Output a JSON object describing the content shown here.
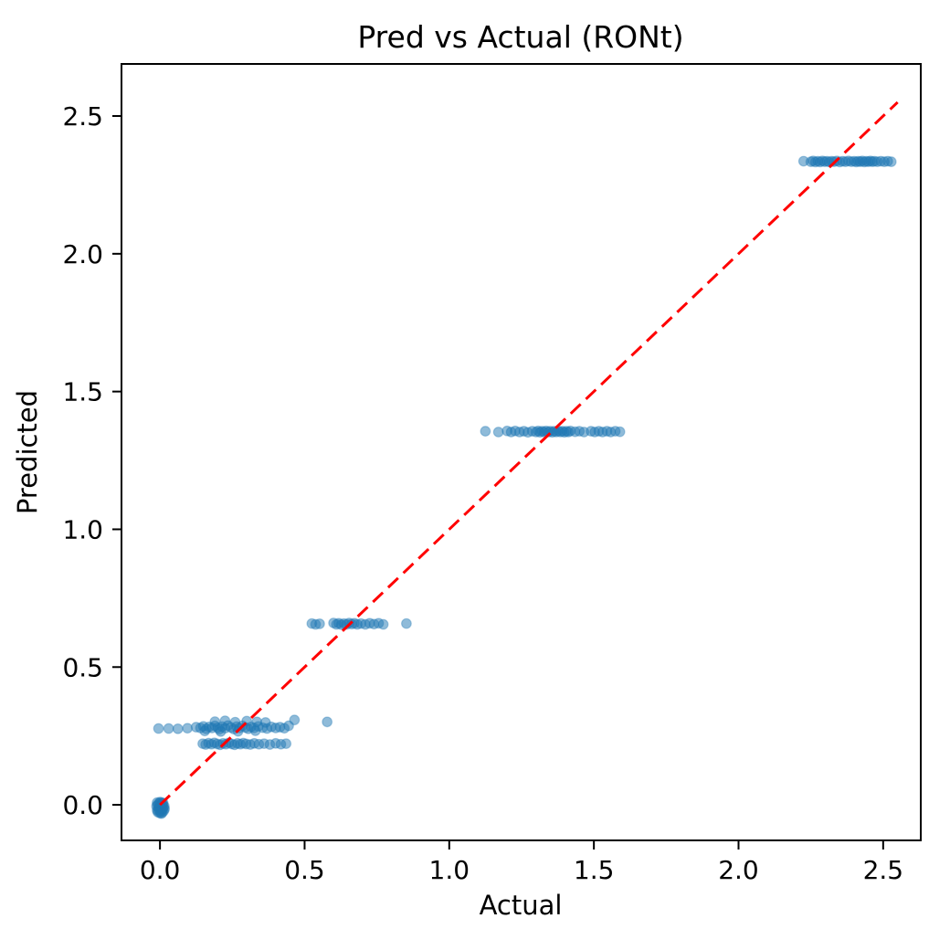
{
  "chart_data": {
    "type": "scatter",
    "title": "Pred vs Actual (RONt)",
    "xlabel": "Actual",
    "ylabel": "Predicted",
    "xlim": [
      -0.133,
      2.63
    ],
    "ylim": [
      -0.129,
      2.689
    ],
    "grid": false,
    "legend": "none",
    "background_color": "#ffffff",
    "frame_color": "#000000",
    "marker_color": "#1f77b4",
    "marker_alpha": 0.5,
    "xticks": [
      "0.0",
      "0.5",
      "1.0",
      "1.5",
      "2.0",
      "2.5"
    ],
    "xtick_values": [
      0.0,
      0.5,
      1.0,
      1.5,
      2.0,
      2.5
    ],
    "yticks": [
      "0.0",
      "0.5",
      "1.0",
      "1.5",
      "2.0",
      "2.5"
    ],
    "ytick_values": [
      0.0,
      0.5,
      1.0,
      1.5,
      2.0,
      2.5
    ],
    "identity_line": {
      "color": "#ff0000",
      "style": "dashed",
      "from": [
        0.0,
        0.0
      ],
      "to": [
        2.55,
        2.55
      ]
    },
    "points": [
      [
        0,
        0
      ],
      [
        0.005,
        -0.005
      ],
      [
        -0.005,
        -0.01
      ],
      [
        0.01,
        -0.015
      ],
      [
        0,
        -0.02
      ],
      [
        0.008,
        0.005
      ],
      [
        -0.008,
        0
      ],
      [
        0.003,
        -0.025
      ],
      [
        0.012,
        -0.01
      ],
      [
        -0.01,
        -0.02
      ],
      [
        0,
        -0.005
      ],
      [
        0.006,
        -0.02
      ],
      [
        -0.004,
        0.005
      ],
      [
        0.01,
        0
      ],
      [
        0.002,
        -0.012
      ],
      [
        -0.006,
        -0.018
      ],
      [
        0.015,
        -0.005
      ],
      [
        0,
        -0.03
      ],
      [
        0.008,
        -0.028
      ],
      [
        -0.01,
        0.008
      ],
      [
        0.004,
        0.008
      ],
      [
        0.013,
        -0.022
      ],
      [
        -0.002,
        -0.008
      ],
      [
        0.007,
        -0.012
      ],
      [
        0,
        0.01
      ],
      [
        -0.012,
        -0.005
      ],
      [
        0.016,
        -0.015
      ],
      [
        0.005,
        -0.032
      ],
      [
        -0.007,
        -0.027
      ],
      [
        0.011,
        0.007
      ],
      [
        -0.005,
        0.277
      ],
      [
        0.03,
        0.277
      ],
      [
        0.062,
        0.276
      ],
      [
        0.095,
        0.278
      ],
      [
        0.125,
        0.282
      ],
      [
        0.14,
        0.279
      ],
      [
        0.15,
        0.285
      ],
      [
        0.16,
        0.276
      ],
      [
        0.17,
        0.283
      ],
      [
        0.18,
        0.279
      ],
      [
        0.19,
        0.287
      ],
      [
        0.2,
        0.28
      ],
      [
        0.205,
        0.274
      ],
      [
        0.215,
        0.284
      ],
      [
        0.225,
        0.278
      ],
      [
        0.235,
        0.288
      ],
      [
        0.245,
        0.281
      ],
      [
        0.255,
        0.275
      ],
      [
        0.265,
        0.284
      ],
      [
        0.275,
        0.279
      ],
      [
        0.285,
        0.287
      ],
      [
        0.295,
        0.281
      ],
      [
        0.305,
        0.276
      ],
      [
        0.315,
        0.283
      ],
      [
        0.325,
        0.279
      ],
      [
        0.34,
        0.285
      ],
      [
        0.355,
        0.28
      ],
      [
        0.37,
        0.277
      ],
      [
        0.385,
        0.283
      ],
      [
        0.4,
        0.279
      ],
      [
        0.415,
        0.282
      ],
      [
        0.43,
        0.278
      ],
      [
        0.19,
        0.302
      ],
      [
        0.225,
        0.305
      ],
      [
        0.26,
        0.3
      ],
      [
        0.3,
        0.304
      ],
      [
        0.335,
        0.301
      ],
      [
        0.365,
        0.299
      ],
      [
        0.155,
        0.268
      ],
      [
        0.21,
        0.266
      ],
      [
        0.27,
        0.267
      ],
      [
        0.33,
        0.269
      ],
      [
        0.445,
        0.287
      ],
      [
        0.465,
        0.308
      ],
      [
        0.578,
        0.301
      ],
      [
        0.148,
        0.222
      ],
      [
        0.158,
        0.219
      ],
      [
        0.168,
        0.224
      ],
      [
        0.178,
        0.22
      ],
      [
        0.188,
        0.225
      ],
      [
        0.198,
        0.221
      ],
      [
        0.208,
        0.218
      ],
      [
        0.218,
        0.223
      ],
      [
        0.228,
        0.22
      ],
      [
        0.238,
        0.225
      ],
      [
        0.248,
        0.221
      ],
      [
        0.258,
        0.218
      ],
      [
        0.268,
        0.223
      ],
      [
        0.278,
        0.22
      ],
      [
        0.288,
        0.224
      ],
      [
        0.298,
        0.221
      ],
      [
        0.312,
        0.219
      ],
      [
        0.326,
        0.223
      ],
      [
        0.342,
        0.22
      ],
      [
        0.36,
        0.222
      ],
      [
        0.38,
        0.219
      ],
      [
        0.4,
        0.223
      ],
      [
        0.418,
        0.22
      ],
      [
        0.436,
        0.222
      ],
      [
        0.525,
        0.658
      ],
      [
        0.538,
        0.655
      ],
      [
        0.552,
        0.657
      ],
      [
        0.6,
        0.66
      ],
      [
        0.61,
        0.655
      ],
      [
        0.618,
        0.659
      ],
      [
        0.627,
        0.654
      ],
      [
        0.636,
        0.658
      ],
      [
        0.645,
        0.655
      ],
      [
        0.654,
        0.66
      ],
      [
        0.663,
        0.656
      ],
      [
        0.672,
        0.659
      ],
      [
        0.682,
        0.655
      ],
      [
        0.695,
        0.658
      ],
      [
        0.71,
        0.655
      ],
      [
        0.725,
        0.659
      ],
      [
        0.74,
        0.656
      ],
      [
        0.756,
        0.659
      ],
      [
        0.772,
        0.655
      ],
      [
        0.852,
        0.658
      ],
      [
        1.125,
        1.356
      ],
      [
        1.17,
        1.353
      ],
      [
        1.2,
        1.357
      ],
      [
        1.214,
        1.353
      ],
      [
        1.228,
        1.357
      ],
      [
        1.243,
        1.353
      ],
      [
        1.258,
        1.356
      ],
      [
        1.272,
        1.352
      ],
      [
        1.287,
        1.356
      ],
      [
        1.3,
        1.353
      ],
      [
        1.307,
        1.357
      ],
      [
        1.314,
        1.352
      ],
      [
        1.321,
        1.356
      ],
      [
        1.328,
        1.353
      ],
      [
        1.335,
        1.357
      ],
      [
        1.342,
        1.353
      ],
      [
        1.349,
        1.356
      ],
      [
        1.356,
        1.352
      ],
      [
        1.363,
        1.356
      ],
      [
        1.37,
        1.353
      ],
      [
        1.377,
        1.357
      ],
      [
        1.384,
        1.353
      ],
      [
        1.391,
        1.356
      ],
      [
        1.398,
        1.352
      ],
      [
        1.405,
        1.356
      ],
      [
        1.412,
        1.353
      ],
      [
        1.419,
        1.357
      ],
      [
        1.435,
        1.354
      ],
      [
        1.45,
        1.356
      ],
      [
        1.466,
        1.353
      ],
      [
        1.49,
        1.356
      ],
      [
        1.503,
        1.353
      ],
      [
        1.517,
        1.356
      ],
      [
        1.53,
        1.353
      ],
      [
        1.545,
        1.356
      ],
      [
        1.558,
        1.353
      ],
      [
        1.574,
        1.356
      ],
      [
        1.59,
        1.354
      ],
      [
        2.225,
        2.336
      ],
      [
        2.25,
        2.334
      ],
      [
        2.258,
        2.337
      ],
      [
        2.266,
        2.333
      ],
      [
        2.274,
        2.336
      ],
      [
        2.282,
        2.333
      ],
      [
        2.29,
        2.337
      ],
      [
        2.298,
        2.334
      ],
      [
        2.306,
        2.336
      ],
      [
        2.314,
        2.333
      ],
      [
        2.322,
        2.336
      ],
      [
        2.33,
        2.334
      ],
      [
        2.34,
        2.337
      ],
      [
        2.35,
        2.333
      ],
      [
        2.36,
        2.336
      ],
      [
        2.37,
        2.334
      ],
      [
        2.38,
        2.337
      ],
      [
        2.39,
        2.334
      ],
      [
        2.4,
        2.336
      ],
      [
        2.407,
        2.333
      ],
      [
        2.414,
        2.336
      ],
      [
        2.421,
        2.334
      ],
      [
        2.428,
        2.337
      ],
      [
        2.435,
        2.333
      ],
      [
        2.442,
        2.336
      ],
      [
        2.449,
        2.334
      ],
      [
        2.456,
        2.337
      ],
      [
        2.463,
        2.334
      ],
      [
        2.47,
        2.336
      ],
      [
        2.48,
        2.334
      ],
      [
        2.492,
        2.336
      ],
      [
        2.504,
        2.334
      ],
      [
        2.516,
        2.336
      ],
      [
        2.528,
        2.334
      ]
    ]
  }
}
